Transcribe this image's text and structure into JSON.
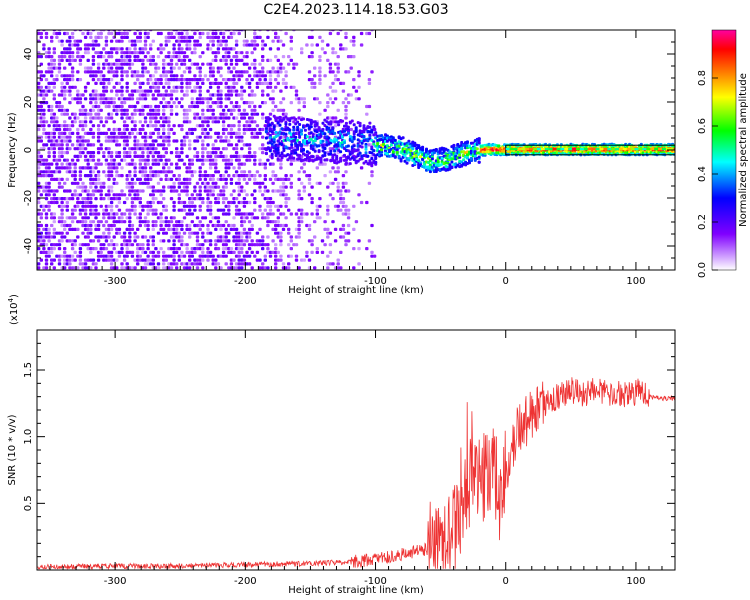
{
  "title": "C2E4.2023.114.18.53.G03",
  "chart_data": [
    {
      "type": "heatmap",
      "title": "C2E4.2023.114.18.53.G03",
      "xlabel": "Height of straight line (km)",
      "ylabel": "Frequency (Hz)",
      "xlim": [
        -360,
        130
      ],
      "ylim": [
        -50,
        50
      ],
      "x_ticks": [
        -300,
        -200,
        -100,
        0,
        100
      ],
      "y_ticks": [
        -40,
        -20,
        0,
        20,
        40
      ],
      "colorbar": {
        "label": "Normalized spectral amplitude",
        "range": [
          0.0,
          1.0
        ],
        "ticks": [
          0.0,
          0.2,
          0.4,
          0.6,
          0.8
        ],
        "colormap": [
          "#ffffff",
          "#cc99ff",
          "#8000ff",
          "#0000ff",
          "#00ffff",
          "#00ff00",
          "#ffff00",
          "#ff8000",
          "#ff0000",
          "#ff00a0"
        ]
      },
      "track": [
        {
          "x": -180,
          "y": 5
        },
        {
          "x": -150,
          "y": 4
        },
        {
          "x": -120,
          "y": 3
        },
        {
          "x": -100,
          "y": 2
        },
        {
          "x": -80,
          "y": 0
        },
        {
          "x": -60,
          "y": -5
        },
        {
          "x": -45,
          "y": -4
        },
        {
          "x": -30,
          "y": -1
        },
        {
          "x": -15,
          "y": 0
        },
        {
          "x": 0,
          "y": 0
        },
        {
          "x": 50,
          "y": 0
        },
        {
          "x": 100,
          "y": 0
        },
        {
          "x": 130,
          "y": 0
        }
      ]
    },
    {
      "type": "line",
      "xlabel": "Height of straight line (km)",
      "ylabel": "SNR (10 * v/v)",
      "yunit": "(x10^4)",
      "xlim": [
        -360,
        130
      ],
      "ylim": [
        0,
        1.8
      ],
      "x_ticks": [
        -300,
        -200,
        -100,
        0,
        100
      ],
      "y_ticks": [
        0.5,
        1.0,
        1.5
      ],
      "y_ticklabels": [
        "0.5",
        "1.0",
        "1.5"
      ],
      "series": [
        {
          "color": "#ee3333",
          "x": [
            -360,
            -300,
            -250,
            -200,
            -150,
            -120,
            -100,
            -80,
            -60,
            -45,
            -35,
            -30,
            -25,
            -20,
            -15,
            -10,
            -5,
            0,
            5,
            10,
            20,
            30,
            40,
            50,
            60,
            70,
            80,
            90,
            100,
            105,
            110,
            120,
            130
          ],
          "y": [
            0.02,
            0.03,
            0.03,
            0.04,
            0.05,
            0.06,
            0.08,
            0.12,
            0.16,
            0.22,
            0.35,
            0.55,
            0.8,
            0.65,
            0.7,
            0.85,
            0.55,
            0.75,
            0.95,
            1.05,
            1.15,
            1.25,
            1.3,
            1.35,
            1.32,
            1.35,
            1.33,
            1.32,
            1.33,
            1.35,
            1.3,
            1.29,
            1.29
          ]
        }
      ]
    }
  ]
}
